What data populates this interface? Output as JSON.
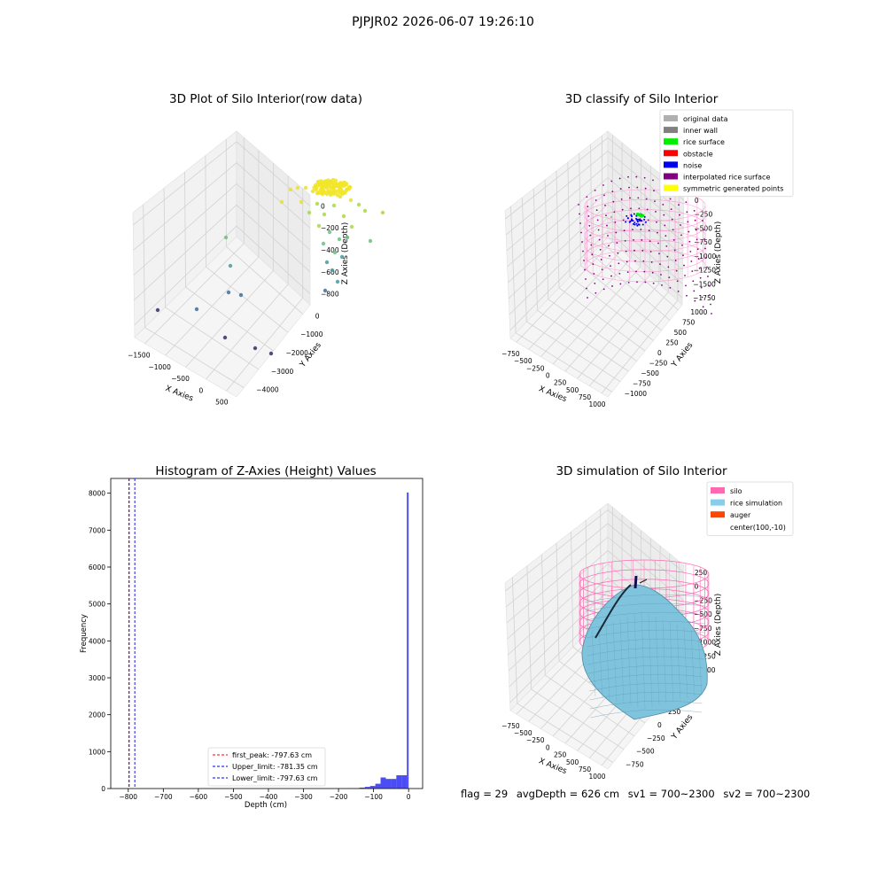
{
  "suptitle": "PJPJR02 2026-06-07 19:26:10",
  "panels": {
    "raw": {
      "title": "3D Plot of Silo Interior(row data)",
      "xlabel": "X Axies",
      "ylabel": "Y Axies",
      "zlabel": "Z Axies (Depth)",
      "xticks": [
        "−1500",
        "−1000",
        "−500",
        "0",
        "500"
      ],
      "yticks": [
        "0",
        "−1000",
        "−2000",
        "−3000",
        "−4000"
      ],
      "zticks": [
        "0",
        "−200",
        "−400",
        "−600",
        "−800"
      ]
    },
    "classify": {
      "title": "3D classify of Silo Interior",
      "xlabel": "X Axies",
      "ylabel": "Y Axies",
      "zlabel": "Z Axies (Depth)",
      "xticks": [
        "−750",
        "−500",
        "−250",
        "0",
        "250",
        "500",
        "750",
        "1000"
      ],
      "yticks": [
        "1000",
        "750",
        "500",
        "250",
        "0",
        "−250",
        "−500",
        "−750",
        "−1000"
      ],
      "zticks": [
        "0",
        "−250",
        "−500",
        "−750",
        "−1000",
        "−1250",
        "−1500",
        "−1750"
      ],
      "legend": [
        {
          "label": "original data",
          "color": "#b0b0b0"
        },
        {
          "label": "inner wall",
          "color": "#808080"
        },
        {
          "label": "rice surface",
          "color": "#00ee00"
        },
        {
          "label": "obstacle",
          "color": "#ff0000"
        },
        {
          "label": "noise",
          "color": "#0000ee"
        },
        {
          "label": "interpolated rice surface",
          "color": "#800080"
        },
        {
          "label": "symmetric generated points",
          "color": "#ffff00"
        }
      ]
    },
    "simulation": {
      "title": "3D simulation of Silo Interior",
      "xlabel": "X Axies",
      "ylabel": "Y Axies",
      "zlabel": "Z Axies (Depth)",
      "xticks": [
        "−750",
        "−500",
        "−250",
        "0",
        "250",
        "500",
        "750",
        "1000"
      ],
      "yticks": [
        "750",
        "500",
        "250",
        "0",
        "−250",
        "−500",
        "−750"
      ],
      "zticks": [
        "250",
        "0",
        "−250",
        "−500",
        "−750",
        "−1000",
        "−1250",
        "−1500"
      ],
      "legend": [
        {
          "label": "silo",
          "color": "#ff69b4"
        },
        {
          "label": "rice simulation",
          "color": "#87ceeb"
        },
        {
          "label": "auger",
          "color": "#ff4500"
        },
        {
          "label": "center(100,-10)",
          "color": ""
        }
      ]
    }
  },
  "footer": {
    "flag": "flag = 29",
    "avg": "avgDepth = 626 cm",
    "sv1": "sv1 = 700~2300",
    "sv2": "sv2 = 700~2300"
  },
  "chart_data": {
    "type": "bar",
    "title": "Histogram of Z-Axies (Height) Values",
    "xlabel": "Depth (cm)",
    "ylabel": "Frequency",
    "xlim": [
      -850,
      40
    ],
    "ylim": [
      0,
      8400
    ],
    "xticks": [
      "−800",
      "−700",
      "−600",
      "−500",
      "−400",
      "−300",
      "−200",
      "−100",
      "0"
    ],
    "yticks": [
      "0",
      "1000",
      "2000",
      "3000",
      "4000",
      "5000",
      "6000",
      "7000",
      "8000"
    ],
    "bar_color": "#0000ee",
    "bins": [
      {
        "x0": -200,
        "x1": -185,
        "count": 4
      },
      {
        "x0": -185,
        "x1": -170,
        "count": 6
      },
      {
        "x0": -170,
        "x1": -155,
        "count": 8
      },
      {
        "x0": -155,
        "x1": -140,
        "count": 12
      },
      {
        "x0": -140,
        "x1": -125,
        "count": 25
      },
      {
        "x0": -125,
        "x1": -110,
        "count": 45
      },
      {
        "x0": -110,
        "x1": -95,
        "count": 70
      },
      {
        "x0": -95,
        "x1": -80,
        "count": 130
      },
      {
        "x0": -80,
        "x1": -65,
        "count": 300
      },
      {
        "x0": -65,
        "x1": -50,
        "count": 260
      },
      {
        "x0": -50,
        "x1": -35,
        "count": 260
      },
      {
        "x0": -35,
        "x1": -20,
        "count": 360
      },
      {
        "x0": -20,
        "x1": -5,
        "count": 360
      },
      {
        "x0": -5,
        "x1": 0,
        "count": 8020
      }
    ],
    "vlines": [
      {
        "label": "first_peak: -797.63 cm",
        "x": -797.63,
        "color": "#ff0000"
      },
      {
        "label": "Upper_limit: -781.35 cm",
        "x": -781.35,
        "color": "#0000ee"
      },
      {
        "label": "Lower_limit: -797.63 cm",
        "x": -797.63,
        "color": "#0000ee"
      }
    ]
  }
}
